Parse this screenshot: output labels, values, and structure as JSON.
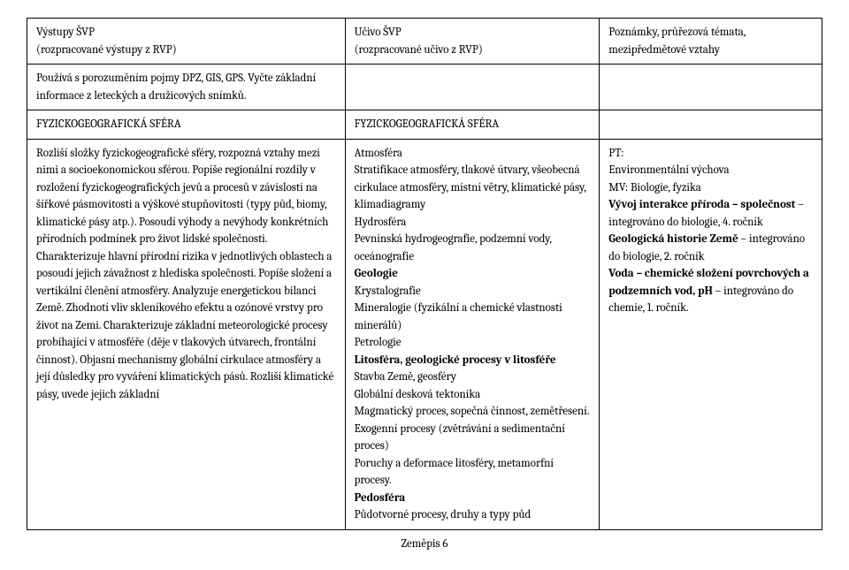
{
  "header": {
    "col1_line1": "Výstupy ŠVP",
    "col1_line2": "(rozpracované výstupy z RVP)",
    "col2_line1": "Učivo ŠVP",
    "col2_line2": "(rozpracované učivo z RVP)",
    "col3_line1": "Poznámky, průřezová témata,",
    "col3_line2": "mezipředmětové vztahy"
  },
  "row1": {
    "col1_text": "Používá s porozuměním pojmy DPZ, GIS, GPS. Vyčte základní informace z leteckých a družicových snímků."
  },
  "row2": {
    "col1": "FYZICKOGEOGRAFICKÁ SFÉRA",
    "col2": "FYZICKOGEOGRAFICKÁ SFÉRA"
  },
  "row3": {
    "col1_text": "Rozliší složky fyzickogeografické sféry, rozpozná vztahy mezi nimi a socioekonomickou sférou. Popíše regionální rozdíly v rozložení fyzickogeografických jevů a procesů v závislosti na šířkové pásmovitosti a výškové stupňovitosti (typy půd, biomy, klimatické pásy atp.). Posoudí výhody a nevýhody konkrétních přírodních podmínek pro život lidské společnosti. Charakterizuje hlavní přírodní rizika v jednotlivých oblastech a posoudí jejich závažnost z hlediska společnosti. Popíše složení a vertikální členění atmosféry. Analyzuje energetickou bilanci Země. Zhodnotí vliv skleníkového efektu a ozónové vrstvy pro život na Zemi. Charakterizuje základní meteorologické procesy probíhající v atmosféře (děje v tlakových útvarech, frontální činnost). Objasní mechanismy globální cirkulace atmosféry a její důsledky pro vyváření klimatických pásů. Rozliší klimatické pásy, uvede jejich základní",
    "col2_p1": "Atmosféra",
    "col2_p2": "Stratifikace atmosféry, tlakové útvary, všeobecná cirkulace atmosféry, místní větry, klimatické pásy, klimadiagramy",
    "col2_p3": "Hydrosféra",
    "col2_p4": "Pevninská hydrogeografie, podzemní vody, oceánografie",
    "col2_p5": "Geologie",
    "col2_p6": "Krystalografie",
    "col2_p7": "Mineralogie (fyzikální a chemické vlastnosti minerálů)",
    "col2_p8": "Petrologie",
    "col2_p9": "Litosféra, geologické procesy v litosféře",
    "col2_p10": "Stavba Země, geosféry",
    "col2_p11": "Globální desková tektonika",
    "col2_p12": "Magmatický proces, sopečná činnost, zemětřesení.",
    "col2_p13": "Exogenní procesy (zvětrávání a sedimentační proces)",
    "col2_p14": "Poruchy a deformace litosféry, metamorfní procesy.",
    "col2_p15": "Pedosféra",
    "col2_p16": "Půdotvorné procesy, druhy a typy půd",
    "col3_p1": "PT:",
    "col3_p2": "Environmentální výchova",
    "col3_p3": "MV: Biologie, fyzika",
    "col3_p4a": "Vývoj interakce příroda – společnost",
    "col3_p4b": " – integrováno do biologie, 4. ročník",
    "col3_p5a": "Geologická historie Země",
    "col3_p5b": " – integrováno do biologie, 2. ročník",
    "col3_p6a": "Voda – chemické složení povrchových a podzemních vod, pH",
    "col3_p6b": " – integrováno do chemie, 1. ročník."
  },
  "footer": "Zeměpis 6"
}
